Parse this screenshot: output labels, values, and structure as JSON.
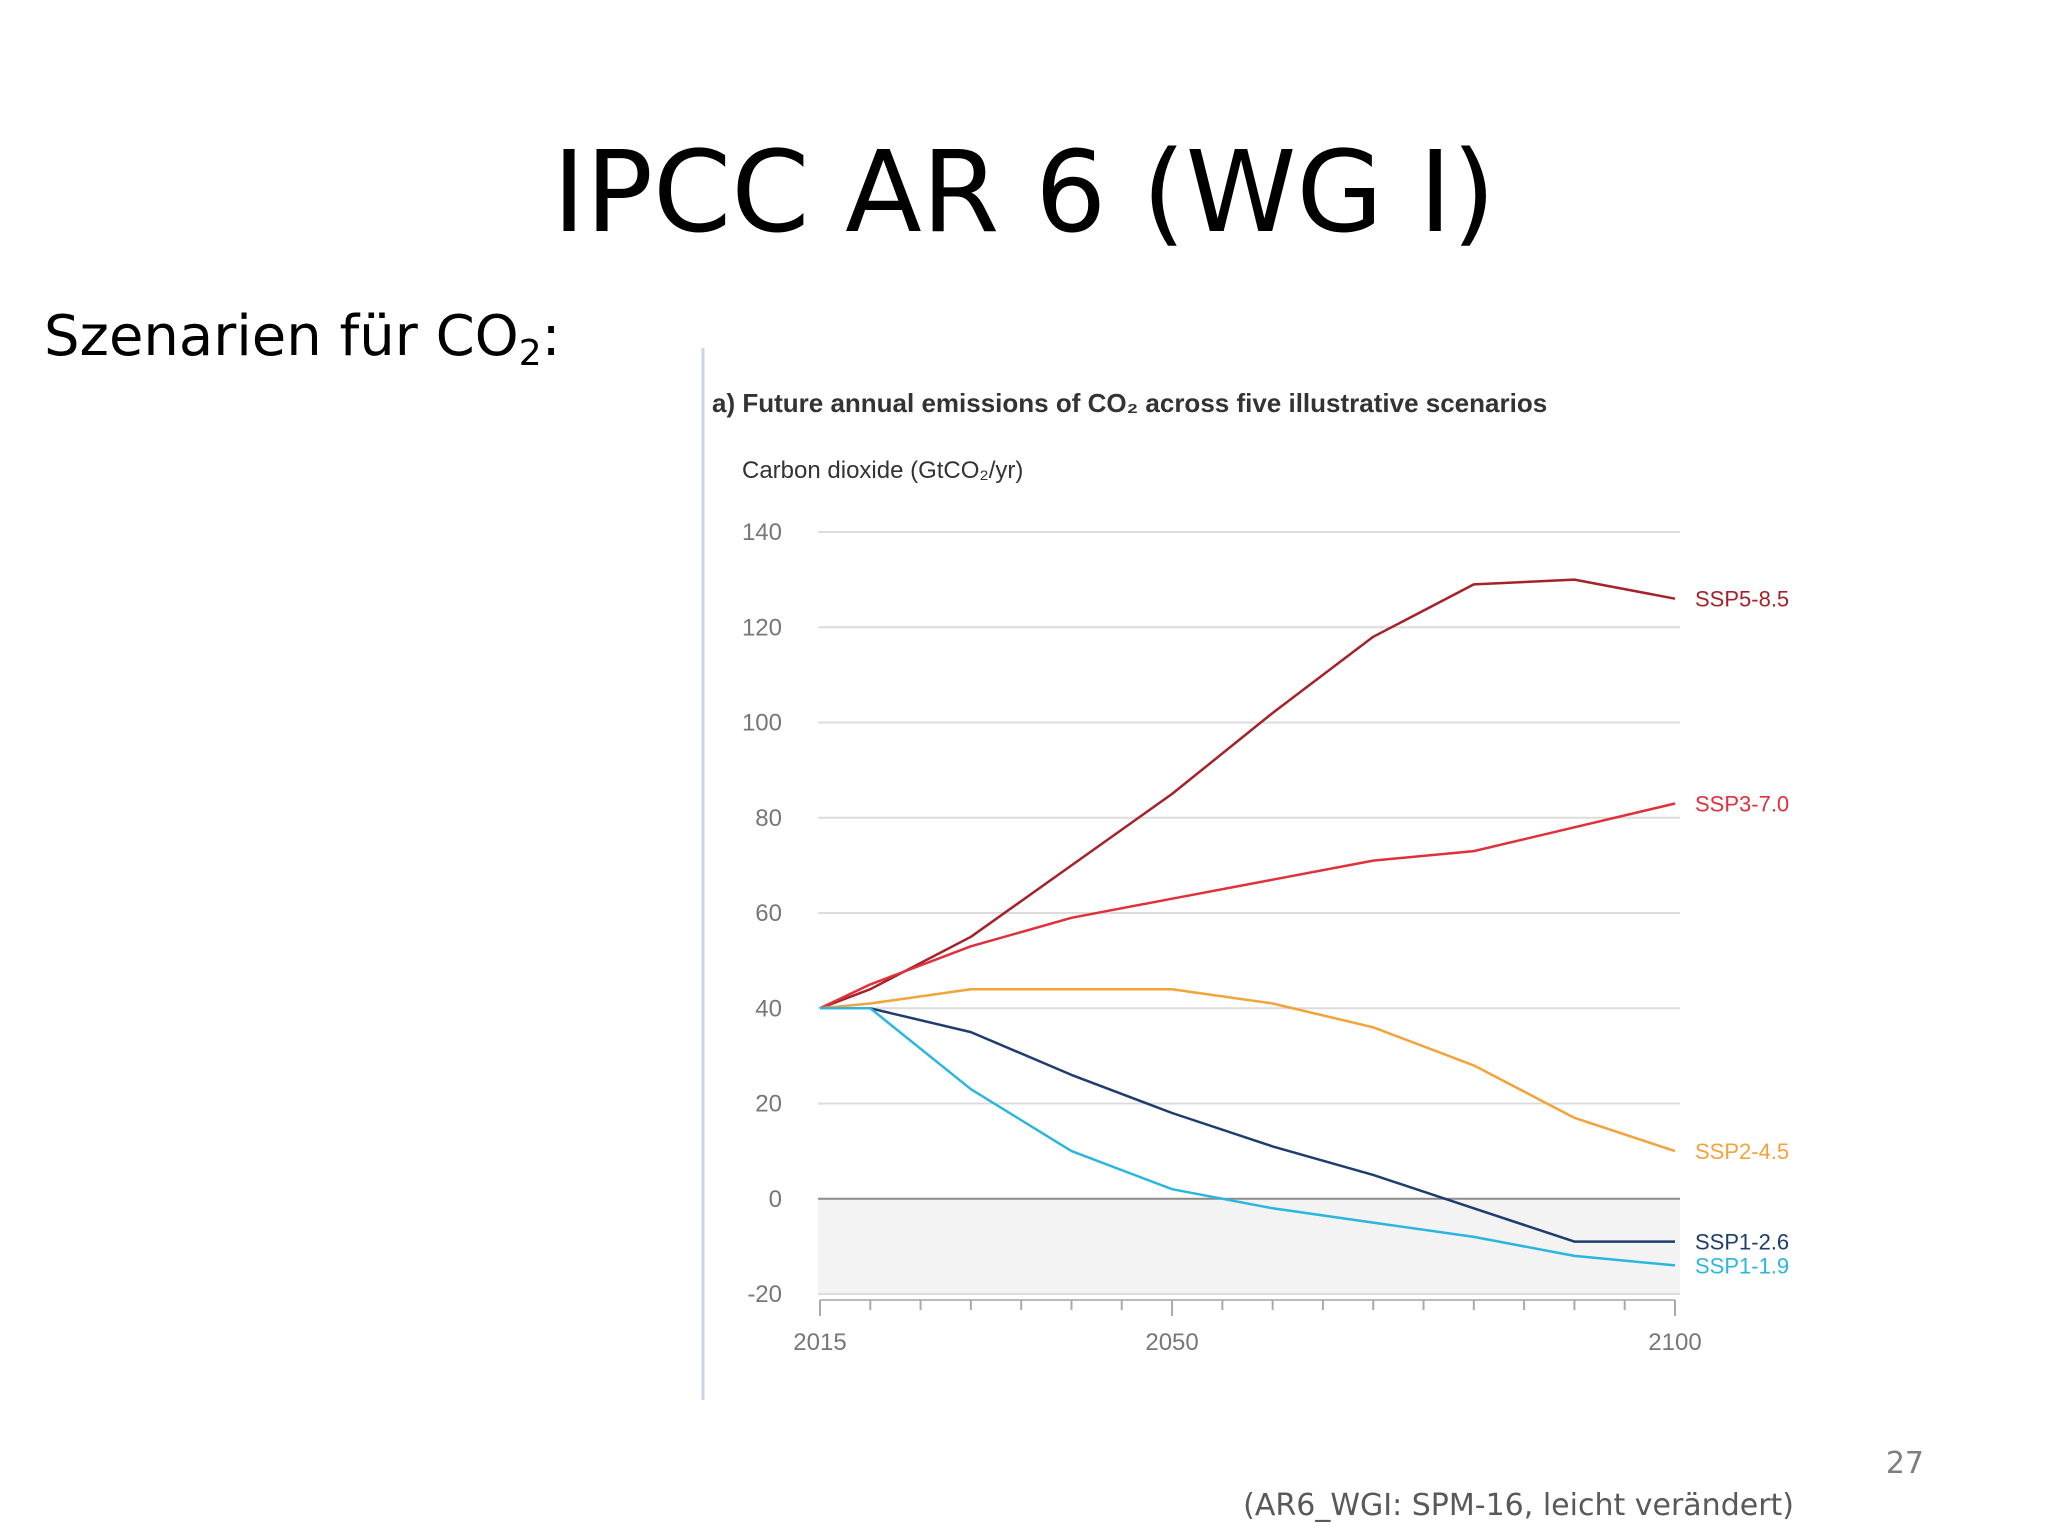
{
  "slide": {
    "title": "IPCC AR 6 (WG I)",
    "subtitle_prefix": "Szenarien für CO",
    "subtitle_sub": "2",
    "subtitle_suffix": ":",
    "page_number": "27",
    "source_note": "(AR6_WGI: SPM-16, leicht verändert)"
  },
  "chart_data": {
    "type": "line",
    "title": "a) Future annual emissions of CO₂   across five illustrative scenarios",
    "ylabel": "Carbon dioxide (GtCO₂/yr)",
    "xlabel": "",
    "xlim": [
      2015,
      2100
    ],
    "ylim": [
      -20,
      140
    ],
    "x_ticks": [
      2015,
      2050,
      2100
    ],
    "y_ticks": [
      140,
      120,
      100,
      80,
      60,
      40,
      20,
      0,
      -20
    ],
    "grid": true,
    "legend": "end-of-line labels",
    "series": [
      {
        "name": "SSP5-8.5",
        "color": "#a4232a",
        "x": [
          2015,
          2020,
          2030,
          2040,
          2050,
          2060,
          2070,
          2080,
          2090,
          2100
        ],
        "y": [
          40,
          44,
          55,
          70,
          85,
          102,
          118,
          129,
          130,
          126
        ]
      },
      {
        "name": "SSP3-7.0",
        "color": "#e0303a",
        "x": [
          2015,
          2020,
          2030,
          2040,
          2050,
          2060,
          2070,
          2080,
          2090,
          2100
        ],
        "y": [
          40,
          45,
          53,
          59,
          63,
          67,
          71,
          73,
          78,
          83
        ]
      },
      {
        "name": "SSP2-4.5",
        "color": "#f4a23a",
        "x": [
          2015,
          2020,
          2030,
          2040,
          2050,
          2060,
          2070,
          2080,
          2090,
          2100
        ],
        "y": [
          40,
          41,
          44,
          44,
          44,
          41,
          36,
          28,
          17,
          10
        ]
      },
      {
        "name": "SSP1-2.6",
        "color": "#1f3c6e",
        "x": [
          2015,
          2020,
          2030,
          2040,
          2050,
          2060,
          2070,
          2080,
          2090,
          2100
        ],
        "y": [
          40,
          40,
          35,
          26,
          18,
          11,
          5,
          -2,
          -9,
          -9
        ]
      },
      {
        "name": "SSP1-1.9",
        "color": "#2bb6e0",
        "x": [
          2015,
          2020,
          2030,
          2040,
          2050,
          2060,
          2070,
          2080,
          2090,
          2100
        ],
        "y": [
          40,
          40,
          23,
          10,
          2,
          -2,
          -5,
          -8,
          -12,
          -14
        ]
      }
    ]
  }
}
